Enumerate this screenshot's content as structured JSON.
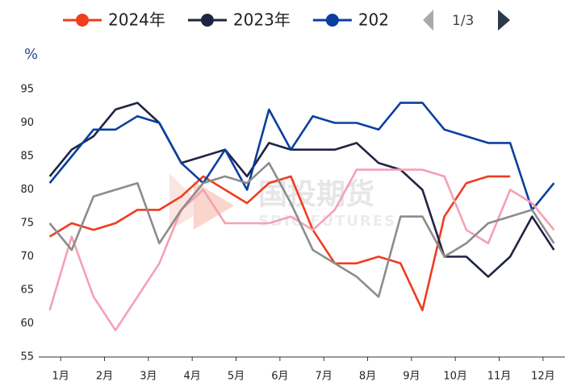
{
  "chart_data": {
    "type": "line",
    "y_unit": "%",
    "legend": {
      "page": "1/3",
      "position": "top"
    },
    "watermark": {
      "title": "国投期货",
      "subtitle": "SDIC FUTURES"
    },
    "xlim": [
      0,
      12
    ],
    "xticks": [
      {
        "value": 0.5,
        "label": "1月"
      },
      {
        "value": 1.5,
        "label": "2月"
      },
      {
        "value": 2.5,
        "label": "3月"
      },
      {
        "value": 3.5,
        "label": "4月"
      },
      {
        "value": 4.5,
        "label": "5月"
      },
      {
        "value": 5.5,
        "label": "6月"
      },
      {
        "value": 6.5,
        "label": "7月"
      },
      {
        "value": 7.5,
        "label": "8月"
      },
      {
        "value": 8.5,
        "label": "9月"
      },
      {
        "value": 9.5,
        "label": "10月"
      },
      {
        "value": 10.5,
        "label": "11月"
      },
      {
        "value": 11.5,
        "label": "12月"
      }
    ],
    "ylim": [
      55,
      95
    ],
    "yticks": [
      55,
      60,
      65,
      70,
      75,
      80,
      85,
      90,
      95
    ],
    "grid": false,
    "x": [
      0.25,
      0.75,
      1.25,
      1.75,
      2.25,
      2.75,
      3.25,
      3.75,
      4.25,
      4.75,
      5.25,
      5.75,
      6.25,
      6.75,
      7.25,
      7.75,
      8.25,
      8.75,
      9.25,
      9.75,
      10.25,
      10.75,
      11.25,
      11.75
    ],
    "series": [
      {
        "name": "2024年",
        "color": "#f03c1f",
        "values": [
          73,
          75,
          74,
          75,
          77,
          77,
          79,
          82,
          80,
          78,
          81,
          82,
          74,
          69,
          69,
          70,
          69,
          62,
          76,
          81,
          82,
          82,
          null,
          null
        ]
      },
      {
        "name": "2023年",
        "color": "#1f2444",
        "values": [
          82,
          86,
          88,
          92,
          93,
          90,
          84,
          85,
          86,
          82,
          87,
          86,
          86,
          86,
          87,
          84,
          83,
          80,
          70,
          70,
          67,
          70,
          76,
          71
        ]
      },
      {
        "name": "202",
        "color": "#0a3fa0",
        "values": [
          81,
          85,
          89,
          89,
          91,
          90,
          84,
          81,
          86,
          80,
          92,
          86,
          91,
          90,
          90,
          89,
          93,
          93,
          89,
          88,
          87,
          87,
          77,
          81
        ]
      },
      {
        "color": "#f5a0b4",
        "values": [
          62,
          73,
          64,
          59,
          64,
          69,
          77,
          80,
          75,
          75,
          75,
          76,
          74,
          77,
          83,
          83,
          83,
          83,
          82,
          74,
          72,
          80,
          78,
          74
        ]
      },
      {
        "color": "#8c8c8c",
        "values": [
          75,
          71,
          79,
          80,
          81,
          72,
          77,
          81,
          82,
          81,
          84,
          78,
          71,
          69,
          67,
          64,
          76,
          76,
          70,
          72,
          75,
          76,
          77,
          72
        ]
      }
    ]
  }
}
